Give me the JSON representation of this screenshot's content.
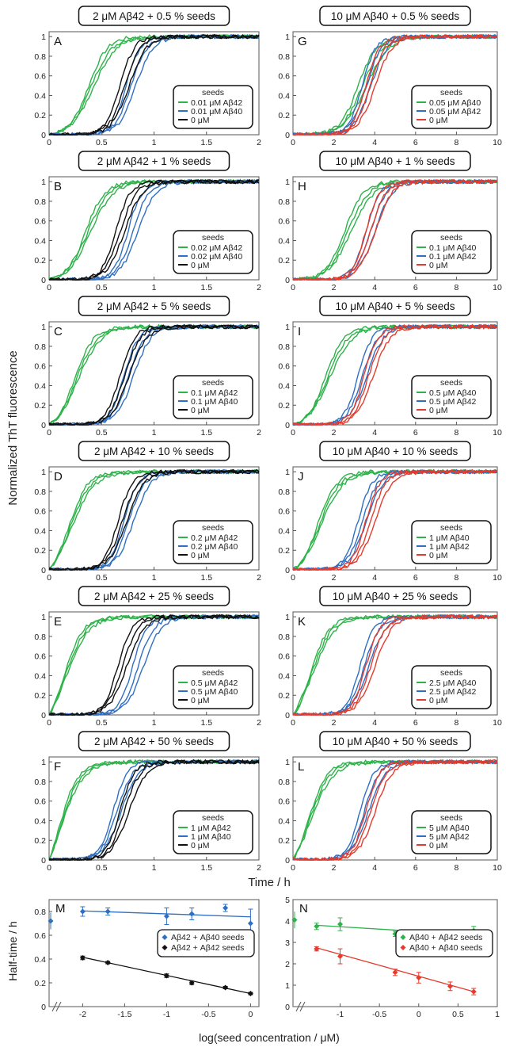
{
  "colors": {
    "green": "#2eb24a",
    "blue": "#2f6fc2",
    "black": "#111111",
    "red": "#e53b2e",
    "axis": "#555555"
  },
  "figure": {
    "ylabel": "Normalized ThT fluorescence",
    "xlabel": "Time / h",
    "xlabel_bottom": "log(seed concentration / μM)",
    "ylabel_bottom": "Half-time / h"
  },
  "chart_data": [
    {
      "panel": "A",
      "type": "line",
      "title": "2 μM Aβ42 + 0.5 % seeds",
      "xlim": [
        0,
        2
      ],
      "xticks": [
        "0",
        "0.5",
        "1",
        "1.5",
        "2"
      ],
      "ylim": [
        0,
        1.05
      ],
      "yticks": [
        "0",
        "0.2",
        "0.4",
        "0.6",
        "0.8",
        "1"
      ],
      "legend_title": "seeds",
      "series": [
        {
          "name": "0.01 μM Aβ42",
          "color": "green",
          "t_half": 0.4
        },
        {
          "name": "0.01 μM Aβ40",
          "color": "blue",
          "t_half": 0.78
        },
        {
          "name": "0 μM",
          "color": "black",
          "t_half": 0.72
        }
      ]
    },
    {
      "panel": "B",
      "type": "line",
      "title": "2 μM Aβ42 + 1 % seeds",
      "xlim": [
        0,
        2
      ],
      "xticks": [
        "0",
        "0.5",
        "1",
        "1.5",
        "2"
      ],
      "ylim": [
        0,
        1.05
      ],
      "yticks": [
        "0",
        "0.2",
        "0.4",
        "0.6",
        "0.8",
        "1"
      ],
      "legend_title": "seeds",
      "series": [
        {
          "name": "0.02 μM Aβ42",
          "color": "green",
          "t_half": 0.37
        },
        {
          "name": "0.02 μM Aβ40",
          "color": "blue",
          "t_half": 0.8
        },
        {
          "name": "0 μM",
          "color": "black",
          "t_half": 0.68
        }
      ]
    },
    {
      "panel": "C",
      "type": "line",
      "title": "2 μM Aβ42 + 5 % seeds",
      "xlim": [
        0,
        2
      ],
      "xticks": [
        "0",
        "0.5",
        "1",
        "1.5",
        "2"
      ],
      "ylim": [
        0,
        1.05
      ],
      "yticks": [
        "0",
        "0.2",
        "0.4",
        "0.6",
        "0.8",
        "1"
      ],
      "legend_title": "seeds",
      "series": [
        {
          "name": "0.1 μM Aβ42",
          "color": "green",
          "t_half": 0.26
        },
        {
          "name": "0.1 μM Aβ40",
          "color": "blue",
          "t_half": 0.76
        },
        {
          "name": "0 μM",
          "color": "black",
          "t_half": 0.72
        }
      ]
    },
    {
      "panel": "D",
      "type": "line",
      "title": "2 μM Aβ42 + 10 % seeds",
      "xlim": [
        0,
        2
      ],
      "xticks": [
        "0",
        "0.5",
        "1",
        "1.5",
        "2"
      ],
      "ylim": [
        0,
        1.05
      ],
      "yticks": [
        "0",
        "0.2",
        "0.4",
        "0.6",
        "0.8",
        "1"
      ],
      "legend_title": "seeds",
      "series": [
        {
          "name": "0.2 μM Aβ42",
          "color": "green",
          "t_half": 0.2
        },
        {
          "name": "0.2 μM Aβ40",
          "color": "blue",
          "t_half": 0.76
        },
        {
          "name": "0 μM",
          "color": "black",
          "t_half": 0.7
        }
      ]
    },
    {
      "panel": "E",
      "type": "line",
      "title": "2 μM Aβ42 + 25 % seeds",
      "xlim": [
        0,
        2
      ],
      "xticks": [
        "0",
        "0.5",
        "1",
        "1.5",
        "2"
      ],
      "ylim": [
        0,
        1.05
      ],
      "yticks": [
        "0",
        "0.2",
        "0.4",
        "0.6",
        "0.8",
        "1"
      ],
      "legend_title": "seeds",
      "series": [
        {
          "name": "0.5 μM Aβ42",
          "color": "green",
          "t_half": 0.15
        },
        {
          "name": "0.5 μM Aβ40",
          "color": "blue",
          "t_half": 0.85
        },
        {
          "name": "0 μM",
          "color": "black",
          "t_half": 0.7
        }
      ]
    },
    {
      "panel": "F",
      "type": "line",
      "title": "2 μM Aβ42 + 50 % seeds",
      "xlim": [
        0,
        2
      ],
      "xticks": [
        "0",
        "0.5",
        "1",
        "1.5",
        "2"
      ],
      "ylim": [
        0,
        1.05
      ],
      "yticks": [
        "0",
        "0.2",
        "0.4",
        "0.6",
        "0.8",
        "1"
      ],
      "legend_title": "seeds",
      "series": [
        {
          "name": "1 μM Aβ42",
          "color": "green",
          "t_half": 0.1
        },
        {
          "name": "1 μM Aβ40",
          "color": "blue",
          "t_half": 0.65
        },
        {
          "name": "0 μM",
          "color": "black",
          "t_half": 0.72
        }
      ]
    },
    {
      "panel": "G",
      "type": "line",
      "title": "10 μM Aβ40 + 0.5 % seeds",
      "xlim": [
        0,
        10
      ],
      "xticks": [
        "0",
        "2",
        "4",
        "6",
        "8",
        "10"
      ],
      "ylim": [
        0,
        1.05
      ],
      "yticks": [
        "0",
        "0.2",
        "0.4",
        "0.6",
        "0.8",
        "1"
      ],
      "legend_title": "seeds",
      "series": [
        {
          "name": "0.05 μM Aβ40",
          "color": "green",
          "t_half": 3.4
        },
        {
          "name": "0.05 μM Aβ42",
          "color": "blue",
          "t_half": 3.6
        },
        {
          "name": "0 μM",
          "color": "red",
          "t_half": 3.8
        }
      ]
    },
    {
      "panel": "H",
      "type": "line",
      "title": "10 μM Aβ40 + 1 % seeds",
      "xlim": [
        0,
        10
      ],
      "xticks": [
        "0",
        "2",
        "4",
        "6",
        "8",
        "10"
      ],
      "ylim": [
        0,
        1.05
      ],
      "yticks": [
        "0",
        "0.2",
        "0.4",
        "0.6",
        "0.8",
        "1"
      ],
      "legend_title": "seeds",
      "series": [
        {
          "name": "0.1 μM Aβ40",
          "color": "green",
          "t_half": 2.7
        },
        {
          "name": "0.1 μM Aβ42",
          "color": "blue",
          "t_half": 3.8
        },
        {
          "name": "0 μM",
          "color": "red",
          "t_half": 3.8
        }
      ]
    },
    {
      "panel": "I",
      "type": "line",
      "title": "10 μM Aβ40 + 5 % seeds",
      "xlim": [
        0,
        10
      ],
      "xticks": [
        "0",
        "2",
        "4",
        "6",
        "8",
        "10"
      ],
      "ylim": [
        0,
        1.05
      ],
      "yticks": [
        "0",
        "0.2",
        "0.4",
        "0.6",
        "0.8",
        "1"
      ],
      "legend_title": "seeds",
      "series": [
        {
          "name": "0.5 μM Aβ40",
          "color": "green",
          "t_half": 1.7
        },
        {
          "name": "0.5 μM Aβ42",
          "color": "blue",
          "t_half": 3.4
        },
        {
          "name": "0 μM",
          "color": "red",
          "t_half": 3.7
        }
      ]
    },
    {
      "panel": "J",
      "type": "line",
      "title": "10 μM Aβ40 + 10 % seeds",
      "xlim": [
        0,
        10
      ],
      "xticks": [
        "0",
        "2",
        "4",
        "6",
        "8",
        "10"
      ],
      "ylim": [
        0,
        1.05
      ],
      "yticks": [
        "0",
        "0.2",
        "0.4",
        "0.6",
        "0.8",
        "1"
      ],
      "legend_title": "seeds",
      "series": [
        {
          "name": "1 μM Aβ40",
          "color": "green",
          "t_half": 1.3
        },
        {
          "name": "1 μM Aβ42",
          "color": "blue",
          "t_half": 3.4
        },
        {
          "name": "0 μM",
          "color": "red",
          "t_half": 3.8
        }
      ]
    },
    {
      "panel": "K",
      "type": "line",
      "title": "10 μM Aβ40 + 25 % seeds",
      "xlim": [
        0,
        10
      ],
      "xticks": [
        "0",
        "2",
        "4",
        "6",
        "8",
        "10"
      ],
      "ylim": [
        0,
        1.05
      ],
      "yticks": [
        "0",
        "0.2",
        "0.4",
        "0.6",
        "0.8",
        "1"
      ],
      "legend_title": "seeds",
      "series": [
        {
          "name": "2.5 μM Aβ40",
          "color": "green",
          "t_half": 0.9
        },
        {
          "name": "2.5 μM Aβ42",
          "color": "blue",
          "t_half": 3.5
        },
        {
          "name": "0 μM",
          "color": "red",
          "t_half": 3.8
        }
      ]
    },
    {
      "panel": "L",
      "type": "line",
      "title": "10 μM Aβ40 + 50 % seeds",
      "xlim": [
        0,
        10
      ],
      "xticks": [
        "0",
        "2",
        "4",
        "6",
        "8",
        "10"
      ],
      "ylim": [
        0,
        1.05
      ],
      "yticks": [
        "0",
        "0.2",
        "0.4",
        "0.6",
        "0.8",
        "1"
      ],
      "legend_title": "seeds",
      "series": [
        {
          "name": "5 μM Aβ40",
          "color": "green",
          "t_half": 0.8
        },
        {
          "name": "5 μM Aβ42",
          "color": "blue",
          "t_half": 3.5
        },
        {
          "name": "0 μM",
          "color": "red",
          "t_half": 3.8
        }
      ]
    },
    {
      "panel": "M",
      "type": "scatter",
      "xlim": [
        -2.4,
        0.1
      ],
      "xticks": [
        "-2",
        "-1.5",
        "-1",
        "-0.5",
        "0"
      ],
      "ylim": [
        0,
        0.9
      ],
      "yticks": [
        "0",
        "0.2",
        "0.4",
        "0.6",
        "0.8"
      ],
      "series": [
        {
          "name": "Aβ42 + Aβ40 seeds",
          "color": "blue",
          "x": [
            -2,
            -1.7,
            -1,
            -0.7,
            -0.3,
            0
          ],
          "y": [
            0.8,
            0.8,
            0.76,
            0.78,
            0.83,
            0.7
          ],
          "err": [
            0.04,
            0.03,
            0.07,
            0.05,
            0.03,
            0.12
          ],
          "fit": [
            0.805,
            0.755
          ],
          "unseeded": 0.72
        },
        {
          "name": "Aβ42 + Aβ42 seeds",
          "color": "black",
          "x": [
            -2,
            -1.7,
            -1,
            -0.7,
            -0.3,
            0
          ],
          "y": [
            0.41,
            0.37,
            0.26,
            0.2,
            0.16,
            0.11
          ],
          "err": [
            0.015,
            0.01,
            0.015,
            0.015,
            0.01,
            0.01
          ],
          "fit": [
            0.415,
            0.11
          ]
        }
      ]
    },
    {
      "panel": "N",
      "type": "scatter",
      "xlim": [
        -1.6,
        1
      ],
      "xticks": [
        "-1",
        "-0.5",
        "0",
        "0.5",
        "1"
      ],
      "ylim": [
        0,
        5
      ],
      "yticks": [
        "0",
        "1",
        "2",
        "3",
        "4",
        "5"
      ],
      "series": [
        {
          "name": "Aβ40 + Aβ42 seeds",
          "color": "green",
          "x": [
            -1.3,
            -1,
            -0.3,
            0,
            0.4,
            0.7
          ],
          "y": [
            3.75,
            3.85,
            3.4,
            3.4,
            3.4,
            3.55
          ],
          "err": [
            0.15,
            0.3,
            0.12,
            0.1,
            0.05,
            0.2
          ],
          "fit": [
            3.8,
            3.35
          ],
          "unseeded": 4.05
        },
        {
          "name": "Aβ40 + Aβ40 seeds",
          "color": "red",
          "x": [
            -1.3,
            -1,
            -0.3,
            0,
            0.4,
            0.7
          ],
          "y": [
            2.7,
            2.35,
            1.6,
            1.35,
            0.95,
            0.7
          ],
          "err": [
            0.1,
            0.35,
            0.15,
            0.25,
            0.2,
            0.15
          ],
          "fit": [
            2.75,
            0.7
          ]
        }
      ]
    }
  ]
}
